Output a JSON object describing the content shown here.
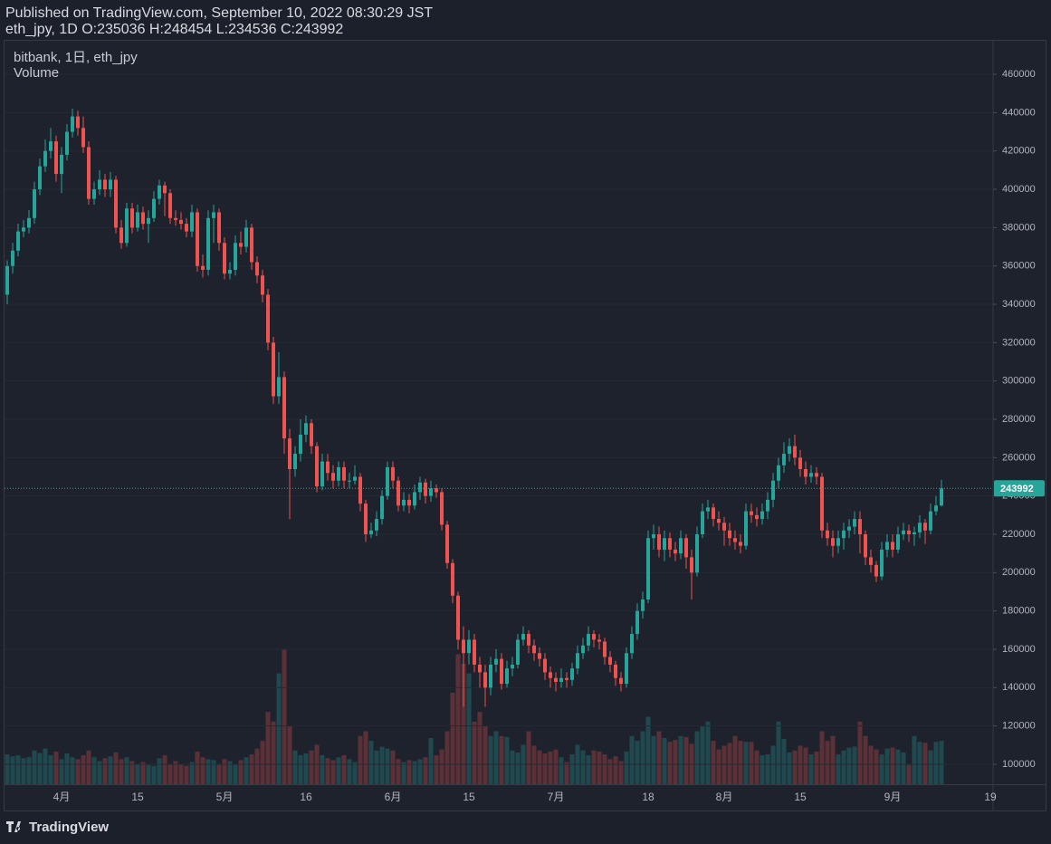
{
  "chart_data": {
    "type": "candlestick",
    "title": "Published on TradingView.com, September 10, 2022 08:30:29 JST",
    "subtitle": "eth_jpy, 1D O:235036 H:248454 L:234536 C:243992",
    "legend_symbol": "bitbank, 1日, eth_jpy",
    "legend_volume": "Volume",
    "brand": "TradingView",
    "up_color": "#26a69a",
    "down_color": "#ef5350",
    "ylim": [
      89600,
      477500
    ],
    "yticks": [
      100000,
      120000,
      140000,
      160000,
      180000,
      200000,
      220000,
      240000,
      260000,
      280000,
      300000,
      320000,
      340000,
      360000,
      380000,
      400000,
      420000,
      440000,
      460000
    ],
    "y2lim": [
      0,
      5000
    ],
    "categories": [
      null,
      null,
      null,
      null,
      null,
      null,
      null,
      null,
      null,
      null,
      "4月",
      null,
      null,
      null,
      null,
      null,
      null,
      null,
      null,
      null,
      null,
      null,
      null,
      null,
      "15",
      null,
      null,
      null,
      null,
      null,
      null,
      null,
      null,
      null,
      null,
      null,
      null,
      null,
      null,
      null,
      "5月",
      null,
      null,
      null,
      null,
      null,
      null,
      null,
      null,
      null,
      null,
      null,
      null,
      null,
      null,
      "16",
      null,
      null,
      null,
      null,
      null,
      null,
      null,
      null,
      null,
      null,
      null,
      null,
      null,
      null,
      null,
      "6月",
      null,
      null,
      null,
      null,
      null,
      null,
      null,
      null,
      null,
      null,
      null,
      null,
      null,
      "15",
      null,
      null,
      null,
      null,
      null,
      null,
      null,
      null,
      null,
      null,
      null,
      null,
      null,
      null,
      null,
      "7月",
      null,
      null,
      null,
      null,
      null,
      null,
      null,
      null,
      null,
      null,
      null,
      null,
      null,
      null,
      null,
      null,
      "18",
      null,
      null,
      null,
      null,
      null,
      null,
      null,
      null,
      null,
      null,
      null,
      null,
      null,
      "8月",
      null,
      null,
      null,
      null,
      null,
      null,
      null,
      null,
      null,
      null,
      null,
      null,
      null,
      "15",
      null,
      null,
      null,
      null,
      null,
      null,
      null,
      null,
      null,
      null,
      null,
      null,
      null,
      null,
      null,
      null,
      "9月",
      null,
      null,
      null,
      null,
      null,
      null,
      null,
      null,
      null,
      null,
      null,
      null,
      null,
      null,
      null,
      null,
      null,
      "19"
    ],
    "open": [
      345000,
      360000,
      368000,
      378000,
      380000,
      385000,
      400000,
      412000,
      420000,
      425000,
      408000,
      418000,
      430000,
      438000,
      432000,
      422000,
      395000,
      400000,
      405000,
      400000,
      405000,
      380000,
      372000,
      390000,
      380000,
      388000,
      382000,
      385000,
      395000,
      402000,
      398000,
      385000,
      384000,
      382000,
      378000,
      388000,
      360000,
      358000,
      385000,
      388000,
      372000,
      356000,
      358000,
      372000,
      370000,
      380000,
      362000,
      355000,
      345000,
      320000,
      292000,
      302000,
      270000,
      254000,
      262000,
      272000,
      278000,
      266000,
      245000,
      258000,
      252000,
      248000,
      255000,
      248000,
      248000,
      250000,
      236000,
      220000,
      222000,
      228000,
      240000,
      255000,
      248000,
      235000,
      238000,
      235000,
      242000,
      247000,
      240000,
      244000,
      242000,
      225000,
      205000,
      188000,
      165000,
      158000,
      165000,
      152000,
      148000,
      140000,
      152000,
      155000,
      142000,
      150000,
      152000,
      165000,
      168000,
      162000,
      158000,
      155000,
      148000,
      145000,
      143000,
      145000,
      144000,
      150000,
      158000,
      162000,
      168000,
      165000,
      164000,
      156000,
      152000,
      145000,
      142000,
      158000,
      168000,
      180000,
      186000,
      218000,
      220000,
      212000,
      218000,
      212000,
      210000,
      218000,
      208000,
      200000,
      220000,
      232000,
      234000,
      228000,
      226000,
      222000,
      218000,
      216000,
      214000,
      232000,
      230000,
      228000,
      232000,
      238000,
      248000,
      256000,
      262000,
      266000,
      260000,
      254000,
      250000,
      252000,
      250000,
      222000,
      218000,
      214000,
      218000,
      222000,
      224000,
      228000,
      220000,
      208000,
      204000,
      198000,
      212000,
      216000,
      212000,
      220000,
      222000,
      220000,
      221000,
      226000,
      222000,
      232000,
      235036,
      null,
      null,
      null,
      null,
      null,
      null,
      null,
      null,
      null
    ],
    "high": [
      363000,
      372000,
      382000,
      384000,
      389000,
      404000,
      416000,
      426000,
      432000,
      428000,
      422000,
      434000,
      442000,
      441000,
      438000,
      425000,
      404000,
      410000,
      408000,
      409000,
      407000,
      384000,
      393000,
      393000,
      392000,
      391000,
      389000,
      399000,
      405000,
      404000,
      400000,
      389000,
      388000,
      385000,
      392000,
      390000,
      366000,
      389000,
      392000,
      390000,
      375000,
      362000,
      376000,
      378000,
      384000,
      382000,
      365000,
      358000,
      348000,
      323000,
      315000,
      305000,
      275000,
      266000,
      280000,
      282000,
      280000,
      268000,
      262000,
      262000,
      256000,
      258000,
      258000,
      252000,
      256000,
      252000,
      238000,
      226000,
      232000,
      243000,
      258000,
      258000,
      250000,
      242000,
      241000,
      246000,
      250000,
      249000,
      248000,
      246000,
      244000,
      227000,
      207000,
      190000,
      172000,
      170000,
      168000,
      156000,
      152000,
      156000,
      160000,
      158000,
      154000,
      156000,
      168000,
      172000,
      170000,
      165000,
      161000,
      158000,
      151000,
      148000,
      150000,
      148000,
      153000,
      162000,
      166000,
      172000,
      170000,
      168000,
      166000,
      159000,
      154000,
      148000,
      161000,
      172000,
      184000,
      190000,
      222000,
      225000,
      224000,
      222000,
      221000,
      216000,
      222000,
      220000,
      212000,
      224000,
      236000,
      238000,
      236000,
      232000,
      229000,
      226000,
      222000,
      220000,
      236000,
      236000,
      234000,
      236000,
      242000,
      252000,
      260000,
      268000,
      270000,
      272000,
      264000,
      258000,
      256000,
      255000,
      252000,
      226000,
      222000,
      222000,
      226000,
      228000,
      232000,
      232000,
      222000,
      212000,
      206000,
      216000,
      220000,
      220000,
      224000,
      226000,
      225000,
      224000,
      230000,
      228000,
      236000,
      240000,
      248454,
      null,
      null,
      null,
      null,
      null,
      null,
      null,
      null,
      null
    ],
    "low": [
      340000,
      356000,
      365000,
      375000,
      377000,
      382000,
      397000,
      409000,
      416000,
      404000,
      398000,
      415000,
      427000,
      428000,
      419000,
      392000,
      392000,
      397000,
      396000,
      396000,
      377000,
      369000,
      370000,
      377000,
      378000,
      379000,
      372000,
      383000,
      392000,
      386000,
      382000,
      381000,
      379000,
      375000,
      375000,
      357000,
      354000,
      355000,
      372000,
      368000,
      353000,
      353000,
      355000,
      366000,
      367000,
      358000,
      351000,
      341000,
      316000,
      288000,
      288000,
      262000,
      228000,
      250000,
      258000,
      268000,
      262000,
      242000,
      243000,
      248000,
      244000,
      245000,
      244000,
      244000,
      246000,
      232000,
      216000,
      218000,
      219000,
      225000,
      238000,
      244000,
      232000,
      232000,
      231000,
      233000,
      238000,
      236000,
      237000,
      239000,
      222000,
      202000,
      184000,
      160000,
      130000,
      152000,
      148000,
      140000,
      130000,
      136000,
      148000,
      139000,
      140000,
      146000,
      150000,
      162000,
      158000,
      154000,
      151000,
      144000,
      140000,
      138000,
      140000,
      140000,
      141000,
      147000,
      155000,
      159000,
      161000,
      160000,
      152000,
      148000,
      141000,
      138000,
      140000,
      155000,
      165000,
      176000,
      184000,
      212000,
      208000,
      206000,
      208000,
      206000,
      207000,
      202000,
      186000,
      198000,
      218000,
      228000,
      224000,
      222000,
      214000,
      214000,
      212000,
      210000,
      212000,
      226000,
      224000,
      225000,
      228000,
      234000,
      244000,
      252000,
      258000,
      256000,
      250000,
      246000,
      247000,
      246000,
      218000,
      214000,
      208000,
      210000,
      212000,
      218000,
      220000,
      210000,
      204000,
      200000,
      195000,
      196000,
      208000,
      208000,
      210000,
      217000,
      216000,
      214000,
      218000,
      215000,
      220000,
      230000,
      234536,
      null,
      null,
      null,
      null,
      null,
      null,
      null,
      null,
      null
    ],
    "close": [
      360000,
      368000,
      378000,
      380000,
      385000,
      400000,
      412000,
      420000,
      425000,
      408000,
      418000,
      430000,
      438000,
      432000,
      422000,
      395000,
      400000,
      405000,
      400000,
      405000,
      380000,
      372000,
      390000,
      380000,
      388000,
      382000,
      385000,
      395000,
      402000,
      398000,
      385000,
      384000,
      382000,
      378000,
      388000,
      360000,
      358000,
      385000,
      388000,
      372000,
      356000,
      358000,
      372000,
      370000,
      380000,
      362000,
      355000,
      345000,
      320000,
      292000,
      302000,
      270000,
      254000,
      262000,
      272000,
      278000,
      266000,
      245000,
      258000,
      252000,
      248000,
      255000,
      248000,
      248000,
      250000,
      236000,
      220000,
      222000,
      228000,
      240000,
      255000,
      248000,
      235000,
      238000,
      235000,
      242000,
      247000,
      240000,
      244000,
      242000,
      225000,
      205000,
      188000,
      165000,
      158000,
      165000,
      152000,
      148000,
      140000,
      152000,
      155000,
      142000,
      150000,
      152000,
      165000,
      168000,
      162000,
      158000,
      155000,
      148000,
      145000,
      143000,
      145000,
      144000,
      150000,
      158000,
      162000,
      168000,
      165000,
      164000,
      156000,
      152000,
      145000,
      142000,
      158000,
      168000,
      180000,
      186000,
      218000,
      220000,
      212000,
      218000,
      212000,
      210000,
      218000,
      208000,
      200000,
      220000,
      232000,
      234000,
      228000,
      226000,
      222000,
      218000,
      216000,
      214000,
      232000,
      230000,
      228000,
      232000,
      238000,
      248000,
      256000,
      262000,
      266000,
      260000,
      254000,
      250000,
      252000,
      250000,
      222000,
      218000,
      214000,
      218000,
      222000,
      224000,
      228000,
      220000,
      208000,
      204000,
      198000,
      212000,
      216000,
      212000,
      220000,
      222000,
      220000,
      221000,
      226000,
      222000,
      232000,
      235000,
      243992,
      null,
      null,
      null,
      null,
      null,
      null,
      null,
      null,
      null
    ],
    "volume": [
      620,
      580,
      600,
      540,
      560,
      700,
      650,
      740,
      600,
      680,
      520,
      640,
      560,
      520,
      600,
      700,
      560,
      480,
      540,
      580,
      660,
      520,
      560,
      480,
      420,
      460,
      400,
      380,
      540,
      600,
      420,
      480,
      420,
      380,
      460,
      680,
      560,
      520,
      500,
      400,
      520,
      480,
      420,
      500,
      560,
      620,
      740,
      900,
      1500,
      1300,
      2300,
      2800,
      1200,
      700,
      600,
      640,
      700,
      820,
      600,
      540,
      500,
      560,
      600,
      520,
      460,
      1000,
      1100,
      900,
      700,
      780,
      740,
      700,
      520,
      460,
      500,
      480,
      520,
      560,
      960,
      600,
      720,
      1100,
      1900,
      2700,
      2500,
      2300,
      1300,
      1500,
      1200,
      1000,
      1100,
      1000,
      980,
      700,
      660,
      820,
      1100,
      800,
      700,
      640,
      680,
      720,
      560,
      460,
      620,
      820,
      700,
      600,
      700,
      680,
      620,
      520,
      580,
      480,
      680,
      1000,
      900,
      1100,
      1400,
      1000,
      1100,
      960,
      880,
      920,
      1000,
      980,
      840,
      1100,
      1200,
      1300,
      900,
      720,
      800,
      860,
      1000,
      900,
      880,
      880,
      700,
      600,
      620,
      800,
      1300,
      940,
      660,
      700,
      800,
      760,
      620,
      680,
      1100,
      900,
      1000,
      620,
      700,
      760,
      780,
      1300,
      1000,
      800,
      720,
      620,
      740,
      760,
      720,
      660,
      400,
      1000,
      880,
      860,
      700,
      880,
      900,
      null,
      null,
      null,
      null,
      null,
      null,
      null,
      null,
      null
    ]
  }
}
